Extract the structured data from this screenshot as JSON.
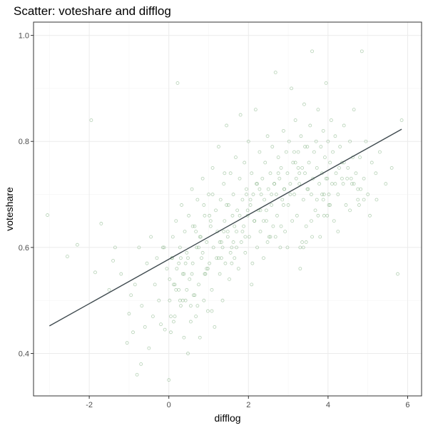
{
  "chart_data": {
    "type": "scatter",
    "title": "Scatter: voteshare and difflog",
    "xlabel": "difflog",
    "ylabel": "voteshare",
    "xlim": [
      -3.4,
      6.35
    ],
    "ylim": [
      0.32,
      1.025
    ],
    "x_ticks": [
      -2,
      0,
      2,
      4,
      6
    ],
    "x_tick_labels": [
      "-2",
      "0",
      "2",
      "4",
      "6"
    ],
    "y_ticks": [
      0.4,
      0.6,
      0.8,
      1.0
    ],
    "y_tick_labels": [
      "0.4",
      "0.6",
      "0.8",
      "1.0"
    ],
    "grid": true,
    "legend": "none",
    "point_color": "#5a9a5a",
    "line_color": "#3f4a4f",
    "fit_line": {
      "x": [
        -3.0,
        5.85
      ],
      "y": [
        0.452,
        0.823
      ]
    },
    "points": {
      "x": [
        -3.05,
        -2.55,
        -2.3,
        -1.95,
        -1.85,
        -1.7,
        -1.5,
        -1.4,
        -1.35,
        -1.2,
        -1.05,
        -1.0,
        -0.95,
        -0.9,
        -0.85,
        -0.8,
        -0.75,
        -0.7,
        -0.68,
        -0.6,
        -0.55,
        -0.5,
        -0.45,
        -0.4,
        -0.35,
        -0.3,
        -0.25,
        -0.2,
        -0.15,
        -0.1,
        -0.05,
        0.0,
        0.02,
        0.05,
        0.08,
        0.1,
        0.12,
        0.15,
        0.18,
        0.2,
        0.22,
        0.25,
        0.28,
        0.3,
        0.32,
        0.35,
        0.38,
        0.4,
        0.42,
        0.45,
        0.48,
        0.5,
        0.52,
        0.55,
        0.58,
        0.6,
        0.62,
        0.65,
        0.68,
        0.7,
        0.72,
        0.75,
        0.78,
        0.8,
        0.82,
        0.85,
        0.88,
        0.9,
        0.92,
        0.95,
        0.98,
        1.0,
        1.02,
        1.05,
        1.08,
        1.1,
        1.12,
        1.15,
        1.18,
        1.2,
        1.22,
        1.25,
        1.28,
        1.3,
        1.32,
        1.35,
        1.38,
        1.4,
        1.42,
        1.45,
        1.48,
        1.5,
        1.52,
        1.55,
        1.58,
        1.6,
        1.62,
        1.65,
        1.68,
        1.7,
        1.72,
        1.75,
        1.78,
        1.8,
        1.82,
        1.85,
        1.88,
        1.9,
        1.92,
        1.95,
        1.98,
        2.0,
        2.02,
        2.05,
        2.08,
        2.1,
        2.12,
        2.15,
        2.18,
        2.2,
        2.22,
        2.25,
        2.28,
        2.3,
        2.32,
        2.35,
        2.38,
        2.4,
        2.42,
        2.45,
        2.48,
        2.5,
        2.52,
        2.55,
        2.58,
        2.6,
        2.62,
        2.65,
        2.68,
        2.7,
        2.72,
        2.75,
        2.78,
        2.8,
        2.82,
        2.85,
        2.88,
        2.9,
        2.92,
        2.95,
        2.98,
        3.0,
        3.02,
        3.05,
        3.08,
        3.1,
        3.12,
        3.15,
        3.18,
        3.2,
        3.22,
        3.25,
        3.28,
        3.3,
        3.32,
        3.35,
        3.38,
        3.4,
        3.42,
        3.45,
        3.48,
        3.5,
        3.52,
        3.55,
        3.58,
        3.6,
        3.62,
        3.65,
        3.68,
        3.7,
        3.72,
        3.75,
        3.78,
        3.8,
        3.82,
        3.85,
        3.88,
        3.9,
        3.92,
        3.95,
        3.98,
        4.0,
        4.02,
        4.05,
        4.08,
        4.1,
        4.12,
        4.15,
        4.18,
        4.2,
        4.25,
        4.3,
        4.35,
        4.4,
        4.45,
        4.5,
        4.55,
        4.6,
        4.65,
        4.7,
        4.75,
        4.8,
        4.85,
        4.9,
        4.95,
        5.0,
        5.1,
        5.2,
        5.3,
        5.45,
        5.6,
        5.75,
        5.85,
        0.3,
        0.6,
        0.9,
        1.1,
        1.4,
        1.7,
        2.3,
        2.9,
        3.3,
        3.6,
        3.9,
        4.4,
        4.9,
        0.05,
        0.45,
        0.75,
        1.25,
        1.65,
        2.05,
        2.65,
        3.15,
        3.75,
        4.35,
        0.15,
        0.55,
        0.95,
        1.35,
        1.85,
        2.45,
        3.05,
        3.45,
        4.05,
        4.65,
        0.25,
        0.65,
        1.05,
        1.55,
        1.95,
        2.55,
        3.25,
        3.85,
        4.25,
        4.75,
        0.35,
        0.85,
        1.45,
        2.15,
        2.75,
        3.35,
        3.95,
        4.55,
        5.05,
        0.02,
        0.68,
        1.32,
        1.92,
        2.58,
        3.18,
        3.72,
        4.28,
        4.82,
        0.12,
        0.42,
        0.72,
        1.02,
        1.62,
        2.22,
        2.82,
        3.42,
        4.02,
        4.62,
        5.22,
        -0.12,
        0.38,
        0.88,
        1.38,
        2.38,
        3.38,
        4.38,
        0.08,
        0.28,
        0.58,
        0.78,
        1.08,
        1.28,
        1.58,
        1.78,
        2.08,
        2.28,
        2.68,
        2.98,
        3.28,
        3.58,
        3.88,
        4.18,
        4.48,
        4.78,
        0.18,
        0.48,
        0.98,
        1.48,
        1.98,
        2.48,
        2.88,
        3.48,
        3.98,
        4.58
      ],
      "y": [
        0.661,
        0.583,
        0.605,
        0.84,
        0.553,
        0.645,
        0.52,
        0.575,
        0.6,
        0.55,
        0.42,
        0.475,
        0.51,
        0.44,
        0.53,
        0.36,
        0.6,
        0.38,
        0.49,
        0.45,
        0.57,
        0.41,
        0.62,
        0.47,
        0.53,
        0.58,
        0.5,
        0.455,
        0.6,
        0.445,
        0.56,
        0.35,
        0.5,
        0.44,
        0.58,
        0.62,
        0.53,
        0.47,
        0.65,
        0.56,
        0.91,
        0.52,
        0.6,
        0.49,
        0.68,
        0.55,
        0.43,
        0.63,
        0.5,
        0.59,
        0.4,
        0.66,
        0.54,
        0.46,
        0.71,
        0.57,
        0.51,
        0.64,
        0.47,
        0.6,
        0.69,
        0.53,
        0.43,
        0.62,
        0.58,
        0.73,
        0.5,
        0.66,
        0.55,
        0.61,
        0.48,
        0.7,
        0.57,
        0.64,
        0.52,
        0.75,
        0.6,
        0.45,
        0.67,
        0.58,
        0.63,
        0.79,
        0.55,
        0.69,
        0.61,
        0.5,
        0.72,
        0.65,
        0.57,
        0.83,
        0.62,
        0.68,
        0.54,
        0.74,
        0.6,
        0.66,
        0.7,
        0.58,
        0.77,
        0.63,
        0.67,
        0.56,
        0.73,
        0.85,
        0.61,
        0.69,
        0.64,
        0.76,
        0.59,
        0.71,
        0.66,
        0.8,
        0.62,
        0.68,
        0.74,
        0.57,
        0.7,
        0.65,
        0.86,
        0.72,
        0.6,
        0.67,
        0.78,
        0.63,
        0.7,
        0.73,
        0.58,
        0.69,
        0.76,
        0.65,
        0.81,
        0.71,
        0.62,
        0.74,
        0.68,
        0.79,
        0.64,
        0.72,
        0.93,
        0.7,
        0.66,
        0.77,
        0.73,
        0.6,
        0.75,
        0.69,
        0.82,
        0.71,
        0.63,
        0.78,
        0.74,
        0.68,
        0.8,
        0.72,
        0.9,
        0.65,
        0.76,
        0.7,
        0.84,
        0.73,
        0.66,
        0.78,
        0.72,
        0.6,
        0.81,
        0.75,
        0.69,
        0.87,
        0.74,
        0.64,
        0.79,
        0.71,
        0.76,
        0.83,
        0.7,
        0.97,
        0.73,
        0.78,
        0.67,
        0.8,
        0.75,
        0.86,
        0.72,
        0.62,
        0.79,
        0.74,
        0.82,
        0.7,
        0.77,
        0.91,
        0.73,
        0.8,
        0.68,
        0.76,
        0.84,
        0.72,
        0.78,
        0.65,
        0.81,
        0.74,
        0.7,
        0.79,
        0.76,
        0.83,
        0.68,
        0.75,
        0.8,
        0.72,
        0.86,
        0.74,
        0.69,
        0.77,
        0.97,
        0.73,
        0.8,
        0.7,
        0.76,
        0.74,
        0.78,
        0.72,
        0.75,
        0.55,
        0.84,
        0.58,
        0.64,
        0.55,
        0.7,
        0.74,
        0.6,
        0.67,
        0.71,
        0.56,
        0.62,
        0.66,
        0.76,
        0.69,
        0.47,
        0.52,
        0.6,
        0.58,
        0.64,
        0.69,
        0.72,
        0.78,
        0.66,
        0.73,
        0.53,
        0.49,
        0.56,
        0.6,
        0.63,
        0.67,
        0.7,
        0.61,
        0.68,
        0.72,
        0.57,
        0.51,
        0.65,
        0.59,
        0.7,
        0.62,
        0.75,
        0.7,
        0.63,
        0.71,
        0.5,
        0.59,
        0.68,
        0.65,
        0.74,
        0.61,
        0.73,
        0.67,
        0.66,
        0.54,
        0.63,
        0.58,
        0.62,
        0.7,
        0.76,
        0.69,
        0.75,
        0.71,
        0.46,
        0.57,
        0.49,
        0.66,
        0.61,
        0.72,
        0.64,
        0.79,
        0.7,
        0.77,
        0.69,
        0.6,
        0.55,
        0.68,
        0.63,
        0.65,
        0.6,
        0.72,
        0.58,
        0.5,
        0.55,
        0.62,
        0.48,
        0.61,
        0.57,
        0.66,
        0.53,
        0.71,
        0.62,
        0.6,
        0.74,
        0.65,
        0.69,
        0.72,
        0.73,
        0.68,
        0.52,
        0.58,
        0.56,
        0.63,
        0.67,
        0.61,
        0.68,
        0.71,
        0.66,
        0.73
      ]
    }
  }
}
